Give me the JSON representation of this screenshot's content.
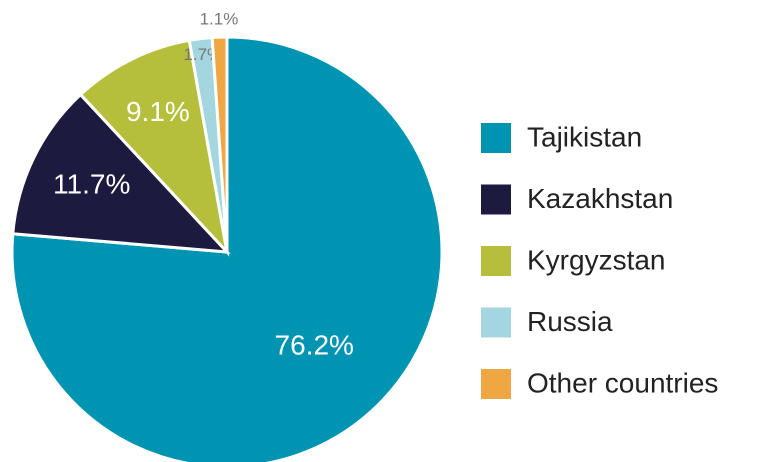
{
  "chart_data": {
    "type": "pie",
    "categories": [
      "Tajikistan",
      "Kazakhstan",
      "Kyrgyzstan",
      "Russia",
      "Other countries"
    ],
    "values": [
      76.2,
      11.7,
      9.1,
      1.7,
      1.1
    ],
    "value_labels": [
      "76.2%",
      "11.7%",
      "9.1%",
      "1.7%",
      "1.1%"
    ],
    "colors": [
      "#0094b3",
      "#1d1a3f",
      "#b6bf3b",
      "#a4d6df",
      "#efa743"
    ],
    "legend": "right"
  }
}
